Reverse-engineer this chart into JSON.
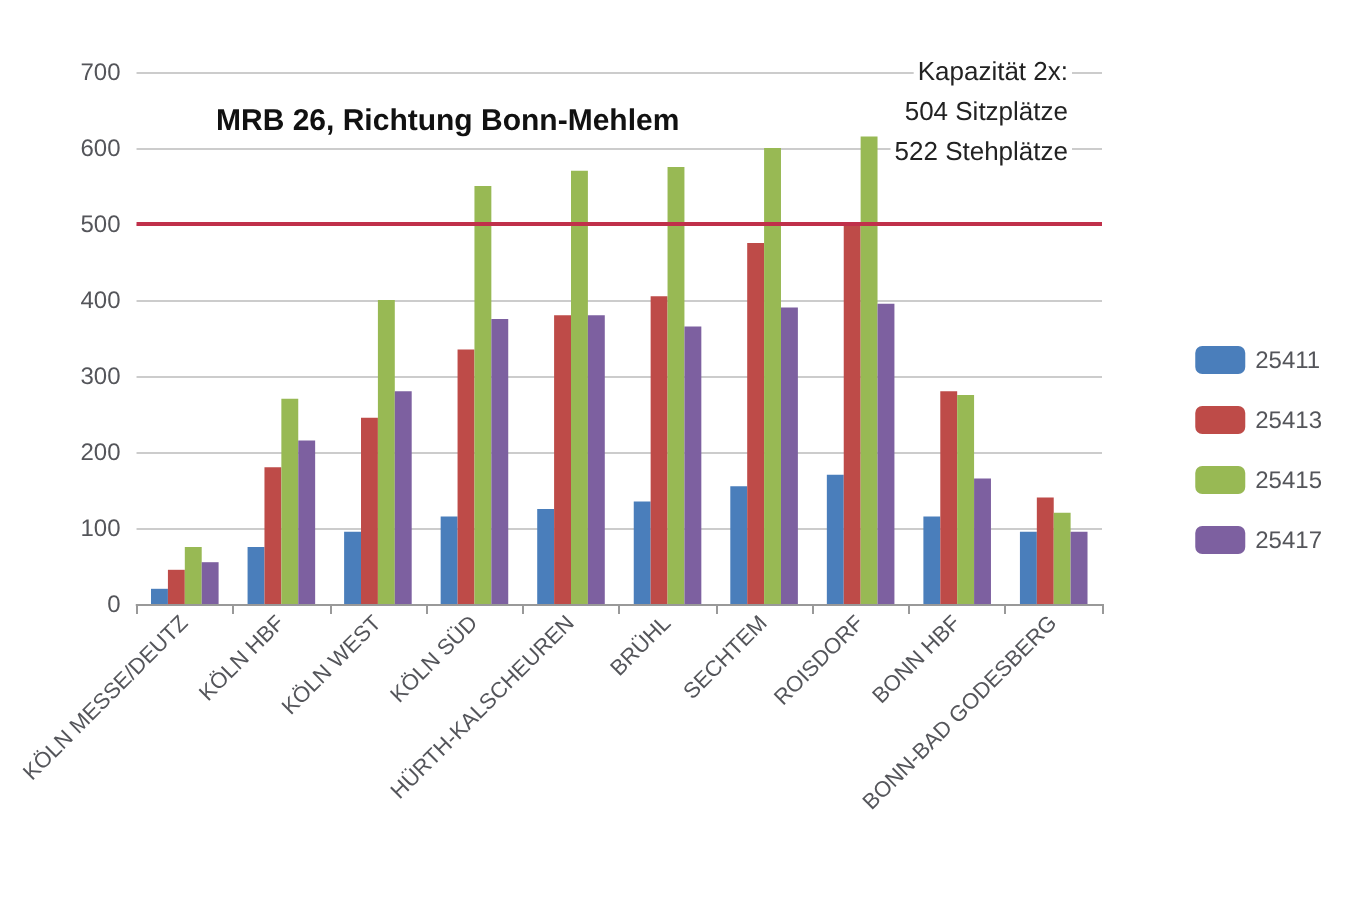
{
  "chart_data": {
    "type": "bar",
    "title": "MRB 26, Richtung Bonn-Mehlem",
    "annotations": [
      "Kapazität 2x:",
      "504 Sitzplätze",
      "522 Stehplätze"
    ],
    "categories": [
      "KÖLN MESSE/DEUTZ",
      "KÖLN HBF",
      "KÖLN WEST",
      "KÖLN SÜD",
      "HÜRTH-KALSCHEUREN",
      "BRÜHL",
      "SECHTEM",
      "ROISDORF",
      "BONN HBF",
      "BONN-BAD GODESBERG"
    ],
    "series": [
      {
        "name": "25411",
        "color": "#4a7ebb",
        "values": [
          20,
          75,
          95,
          115,
          125,
          135,
          155,
          170,
          115,
          95
        ]
      },
      {
        "name": "25413",
        "color": "#be4b48",
        "values": [
          45,
          180,
          245,
          335,
          380,
          405,
          475,
          500,
          280,
          140
        ]
      },
      {
        "name": "25415",
        "color": "#98b954",
        "values": [
          75,
          270,
          400,
          550,
          570,
          575,
          600,
          615,
          275,
          120
        ]
      },
      {
        "name": "25417",
        "color": "#7d60a0",
        "values": [
          55,
          215,
          280,
          375,
          380,
          365,
          390,
          395,
          165,
          95
        ]
      }
    ],
    "ylim": [
      0,
      700
    ],
    "yticks": [
      0,
      100,
      200,
      300,
      400,
      500,
      600,
      700
    ],
    "grid": "y",
    "legend": "right",
    "ref_lines": [
      {
        "axis": "y",
        "value": 500,
        "color": "#c0304a"
      }
    ]
  }
}
